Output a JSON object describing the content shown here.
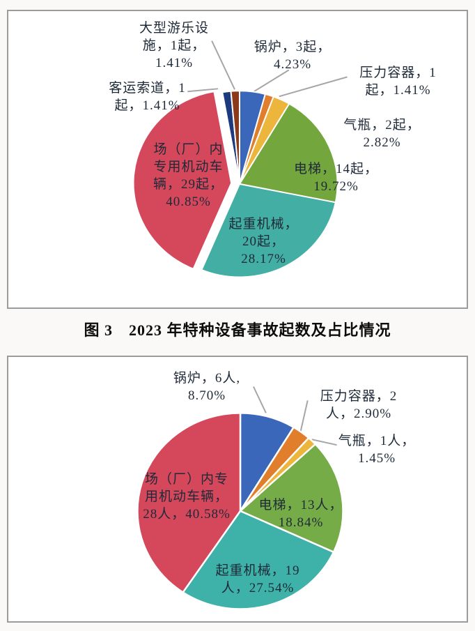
{
  "page": {
    "caption": "图 3　2023 年特种设备事故起数及占比情况"
  },
  "chart_data": [
    {
      "type": "pie",
      "title": "2023 年特种设备事故起数及占比情况",
      "unit": "起",
      "start_angle": "top",
      "direction": "clockwise",
      "legend": "none",
      "slices": [
        {
          "key": "boiler",
          "label": "锅炉",
          "value": 3,
          "pct": 4.23,
          "color": "#3B67BB"
        },
        {
          "key": "pressure-vessel",
          "label": "压力容器",
          "value": 1,
          "pct": 1.41,
          "color": "#E07E2C"
        },
        {
          "key": "gas-cylinder",
          "label": "气瓶",
          "value": 2,
          "pct": 2.82,
          "color": "#ECB53C"
        },
        {
          "key": "elevator",
          "label": "电梯",
          "value": 14,
          "pct": 19.72,
          "color": "#73A73E"
        },
        {
          "key": "lifting-machinery",
          "label": "起重机械",
          "value": 20,
          "pct": 28.17,
          "color": "#43AEA3"
        },
        {
          "key": "factory-vehicle",
          "label": "场（厂）内专用机动车辆",
          "value": 29,
          "pct": 40.85,
          "color": "#D5485C",
          "exploded": true
        },
        {
          "key": "ropeway",
          "label": "客运索道",
          "value": 1,
          "pct": 1.41,
          "color": "#1D3A7E"
        },
        {
          "key": "amusement",
          "label": "大型游乐设施",
          "value": 1,
          "pct": 1.41,
          "color": "#8C3A1A"
        }
      ],
      "label_texts": {
        "amusement": "大型游乐设\n施，1起，\n1.41%",
        "boiler": "锅炉，3起，\n4.23%",
        "pressure-vessel": "压力容器，1\n起，1.41%",
        "ropeway": "客运索道，1\n起，1.41%",
        "gas-cylinder": "气瓶，2起，\n2.82%",
        "elevator": "电梯，14起，\n19.72%",
        "lifting-machinery": "起重机械，\n20起，\n28.17%",
        "factory-vehicle": "场（厂）内\n专用机动车\n辆，29起，\n40.85%"
      }
    },
    {
      "type": "pie",
      "unit": "人",
      "start_angle": "top",
      "direction": "clockwise",
      "legend": "none",
      "slices": [
        {
          "key": "boiler",
          "label": "锅炉",
          "value": 6,
          "pct": 8.7,
          "color": "#3B67BB"
        },
        {
          "key": "pressure-vessel",
          "label": "压力容器",
          "value": 2,
          "pct": 2.9,
          "color": "#E07E2C"
        },
        {
          "key": "gas-cylinder",
          "label": "气瓶",
          "value": 1,
          "pct": 1.45,
          "color": "#ECB53C"
        },
        {
          "key": "elevator",
          "label": "电梯",
          "value": 13,
          "pct": 18.84,
          "color": "#76AC48"
        },
        {
          "key": "lifting-machinery",
          "label": "起重机械",
          "value": 19,
          "pct": 27.54,
          "color": "#3EB1A8"
        },
        {
          "key": "factory-vehicle",
          "label": "场（厂）内专用机动车辆",
          "value": 28,
          "pct": 40.58,
          "color": "#D5485C"
        }
      ],
      "label_texts": {
        "boiler": "锅炉，6人,\n8.70%",
        "pressure-vessel": "压力容器，2\n人，2.90%",
        "gas-cylinder": "气瓶，1人，\n1.45%",
        "elevator": "电梯，13人，\n18.84%",
        "lifting-machinery": "起重机械，19\n人，27.54%",
        "factory-vehicle": "场（厂）内专\n用机动车辆，\n28人，40.58%"
      }
    }
  ]
}
